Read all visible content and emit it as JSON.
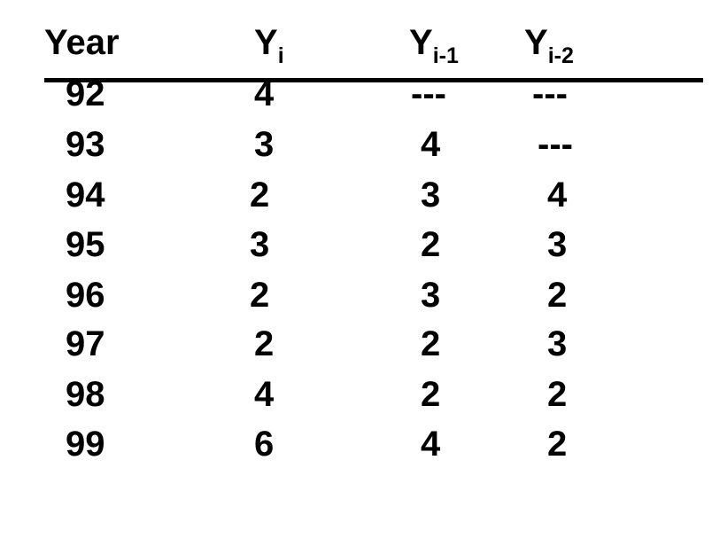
{
  "table": {
    "headers": {
      "year": "Year",
      "yi": {
        "base": "Y",
        "sub": "i"
      },
      "yi1": {
        "base": "Y",
        "sub": "i-1"
      },
      "yi2": {
        "base": "Y",
        "sub": "i-2"
      }
    },
    "rows": [
      {
        "year": "92",
        "yi": "4",
        "yi1": "---",
        "yi2": "---"
      },
      {
        "year": "93",
        "yi": "3",
        "yi1": "4",
        "yi2": "---"
      },
      {
        "year": "94",
        "yi": "2",
        "yi1": "3",
        "yi2": "4"
      },
      {
        "year": "95",
        "yi": "3",
        "yi1": "2",
        "yi2": "3"
      },
      {
        "year": "96",
        "yi": "2",
        "yi1": "3",
        "yi2": "2"
      },
      {
        "year": "97",
        "yi": "2",
        "yi1": "2",
        "yi2": "3"
      },
      {
        "year": "98",
        "yi": "4",
        "yi1": "2",
        "yi2": "2"
      },
      {
        "year": "99",
        "yi": "6",
        "yi1": "4",
        "yi2": "2"
      }
    ]
  }
}
